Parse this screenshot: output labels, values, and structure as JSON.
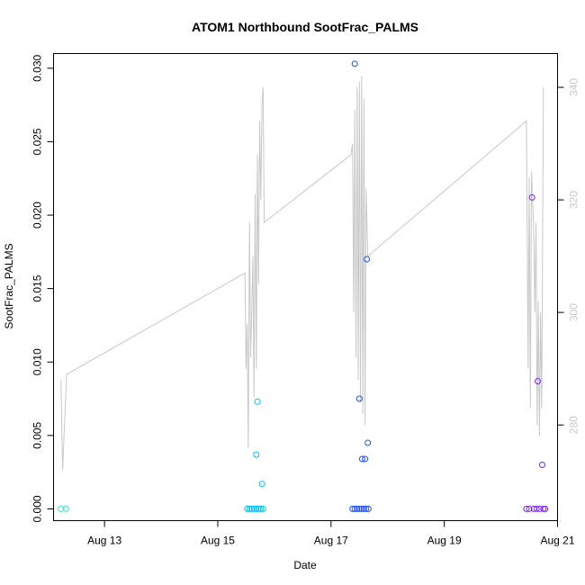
{
  "chart_data": {
    "type": "scatter",
    "title": "ATOM1 Northbound SootFrac_PALMS",
    "xlabel": "Date",
    "ylabel": "SootFrac_PALMS",
    "x_ticks": [
      "Aug 13",
      "Aug 15",
      "Aug 17",
      "Aug 19",
      "Aug 21"
    ],
    "x_tick_values": [
      13,
      15,
      17,
      19,
      21
    ],
    "xlim": [
      12.1,
      21.0
    ],
    "ylim": [
      -0.0008,
      0.031
    ],
    "y_ticks": [
      0.0,
      0.005,
      0.01,
      0.015,
      0.02,
      0.025,
      0.03
    ],
    "y_tick_labels": [
      "0.000",
      "0.005",
      "0.010",
      "0.015",
      "0.020",
      "0.025",
      "0.030"
    ],
    "y2lim": [
      263,
      346
    ],
    "y2_ticks": [
      280,
      300,
      320,
      340
    ],
    "y2_tick_labels": [
      "280",
      "300",
      "320",
      "340"
    ],
    "grid": false,
    "series": [
      {
        "color": "#40E0D0",
        "points": [
          [
            12.23,
            0.0
          ],
          [
            12.32,
            0.0
          ]
        ]
      },
      {
        "color": "#00BFFF",
        "points": [
          [
            15.52,
            0.0
          ],
          [
            15.56,
            0.0
          ],
          [
            15.6,
            0.0
          ],
          [
            15.64,
            0.0
          ],
          [
            15.68,
            0.0
          ],
          [
            15.72,
            0.0
          ],
          [
            15.76,
            0.0
          ],
          [
            15.8,
            0.0
          ],
          [
            15.7,
            0.0073
          ],
          [
            15.68,
            0.0037
          ],
          [
            15.78,
            0.0017
          ]
        ]
      },
      {
        "color": "#1E50FF",
        "points": [
          [
            17.42,
            0.0303
          ],
          [
            17.63,
            0.017
          ],
          [
            17.5,
            0.0075
          ],
          [
            17.65,
            0.0045
          ],
          [
            17.55,
            0.0034
          ],
          [
            17.6,
            0.0034
          ],
          [
            17.38,
            0.0
          ],
          [
            17.42,
            0.0
          ],
          [
            17.46,
            0.0
          ],
          [
            17.5,
            0.0
          ],
          [
            17.54,
            0.0
          ],
          [
            17.58,
            0.0
          ],
          [
            17.62,
            0.0
          ],
          [
            17.66,
            0.0
          ]
        ]
      },
      {
        "color": "#7B2BE2",
        "points": [
          [
            20.55,
            0.0212
          ],
          [
            20.65,
            0.0087
          ],
          [
            20.73,
            0.003
          ],
          [
            20.45,
            0.0
          ],
          [
            20.5,
            0.0
          ],
          [
            20.58,
            0.0
          ],
          [
            20.63,
            0.0
          ],
          [
            20.68,
            0.0
          ],
          [
            20.75,
            0.0
          ],
          [
            20.78,
            0.0
          ]
        ]
      }
    ],
    "line_series": {
      "color": "#c8c8c8",
      "axis": "right",
      "points": [
        [
          12.23,
          288
        ],
        [
          12.26,
          272
        ],
        [
          12.33,
          289
        ],
        [
          15.48,
          307
        ],
        [
          15.5,
          290
        ],
        [
          15.52,
          298
        ],
        [
          15.54,
          276
        ],
        [
          15.56,
          316
        ],
        [
          15.58,
          292
        ],
        [
          15.6,
          300
        ],
        [
          15.62,
          310
        ],
        [
          15.64,
          285
        ],
        [
          15.66,
          321
        ],
        [
          15.68,
          290
        ],
        [
          15.7,
          328
        ],
        [
          15.72,
          305
        ],
        [
          15.74,
          334
        ],
        [
          15.76,
          320
        ],
        [
          15.78,
          337
        ],
        [
          15.8,
          340
        ],
        [
          15.82,
          316
        ],
        [
          17.35,
          328
        ],
        [
          17.38,
          330
        ],
        [
          17.4,
          300
        ],
        [
          17.42,
          336
        ],
        [
          17.44,
          292
        ],
        [
          17.46,
          340
        ],
        [
          17.48,
          288
        ],
        [
          17.5,
          341
        ],
        [
          17.52,
          284
        ],
        [
          17.54,
          342
        ],
        [
          17.56,
          282
        ],
        [
          17.58,
          338
        ],
        [
          17.6,
          280
        ],
        [
          17.62,
          322
        ],
        [
          17.65,
          310
        ],
        [
          20.45,
          334
        ],
        [
          20.48,
          290
        ],
        [
          20.5,
          324
        ],
        [
          20.52,
          283
        ],
        [
          20.54,
          325
        ],
        [
          20.56,
          320
        ],
        [
          20.58,
          314
        ],
        [
          20.6,
          300
        ],
        [
          20.62,
          316
        ],
        [
          20.64,
          280
        ],
        [
          20.66,
          302
        ],
        [
          20.68,
          278
        ],
        [
          20.7,
          300
        ],
        [
          20.72,
          283
        ],
        [
          20.75,
          340
        ]
      ]
    }
  }
}
